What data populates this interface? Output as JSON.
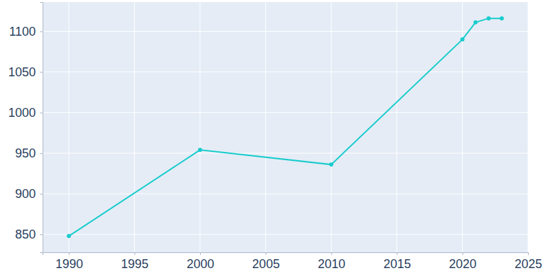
{
  "chart_data": {
    "type": "line",
    "x": [
      1990,
      2000,
      2010,
      2020,
      2021,
      2022,
      2023
    ],
    "values": [
      848,
      954,
      936,
      1090,
      1111,
      1116,
      1116
    ],
    "color": "#17cccc",
    "marker": "circle",
    "xlim": [
      1988,
      2025
    ],
    "xticks": [
      1990,
      1995,
      2000,
      2005,
      2010,
      2015,
      2020,
      2025
    ],
    "ylim": [
      828,
      1136
    ],
    "yticks": [
      850,
      900,
      950,
      1000,
      1050,
      1100
    ],
    "grid": true
  }
}
